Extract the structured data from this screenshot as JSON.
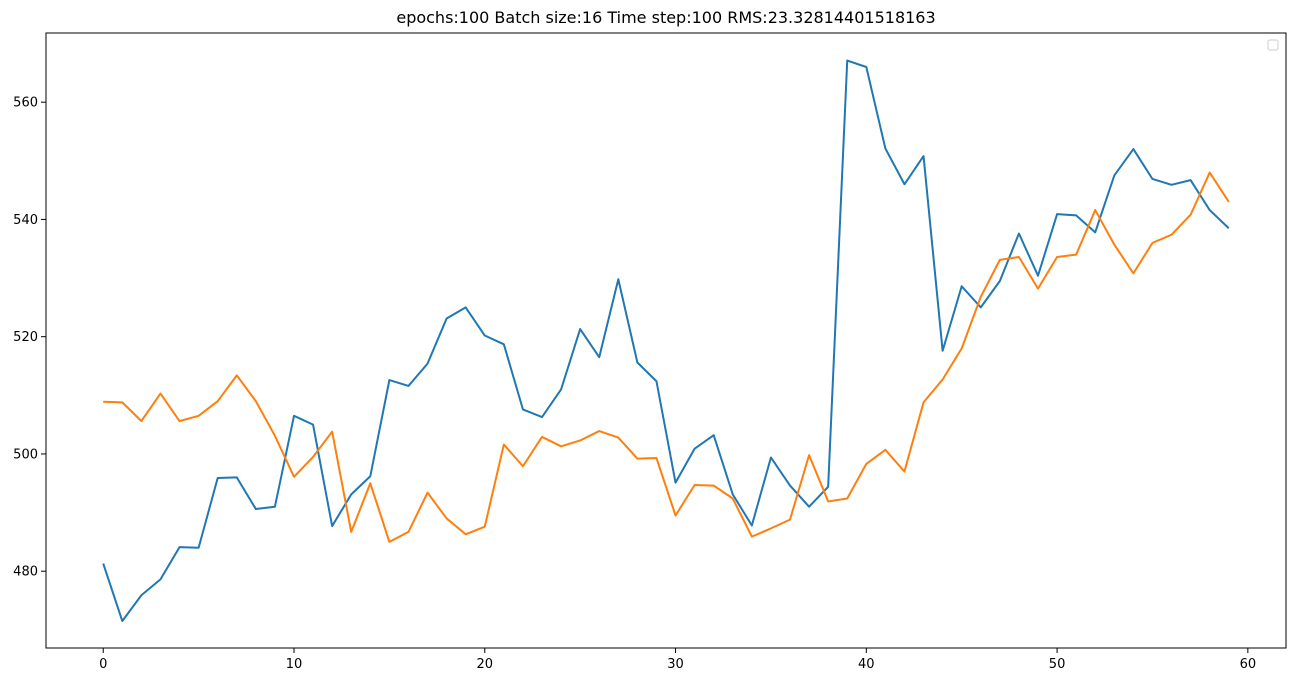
{
  "chart_data": {
    "type": "line",
    "title": "epochs:100   Batch size:16    Time step:100     RMS:23.32814401518163",
    "xlabel": "",
    "ylabel": "",
    "xlim": [
      -3,
      62
    ],
    "ylim": [
      466.9,
      571.8
    ],
    "x_ticks": [
      0,
      10,
      20,
      30,
      40,
      50,
      60
    ],
    "y_ticks": [
      480,
      500,
      520,
      540,
      560
    ],
    "grid": false,
    "legend": {
      "placement": "top-right",
      "entries": []
    },
    "x": [
      0,
      1,
      2,
      3,
      4,
      5,
      6,
      7,
      8,
      9,
      10,
      11,
      12,
      13,
      14,
      15,
      16,
      17,
      18,
      19,
      20,
      21,
      22,
      23,
      24,
      25,
      26,
      27,
      28,
      29,
      30,
      31,
      32,
      33,
      34,
      35,
      36,
      37,
      38,
      39,
      40,
      41,
      42,
      43,
      44,
      45,
      46,
      47,
      48,
      49,
      50,
      51,
      52,
      53,
      54,
      55,
      56,
      57,
      58,
      59
    ],
    "series": [
      {
        "color": "#1f77b4",
        "values": [
          481.3,
          471.5,
          475.9,
          478.6,
          484.1,
          484.0,
          495.9,
          496.0,
          490.6,
          491.0,
          506.5,
          505.0,
          487.7,
          493.1,
          496.2,
          512.6,
          511.6,
          515.4,
          523.1,
          525.0,
          520.2,
          518.7,
          507.6,
          506.3,
          511.0,
          521.3,
          516.5,
          529.8,
          515.6,
          512.4,
          495.1,
          500.9,
          503.2,
          493.1,
          487.8,
          499.4,
          494.6,
          491.0,
          494.4,
          567.1,
          566.0,
          552.1,
          546.0,
          550.8,
          517.6,
          528.6,
          525.0,
          529.5,
          537.6,
          530.4,
          540.9,
          540.7,
          537.8,
          547.5,
          552.0,
          546.9,
          545.9,
          546.7,
          541.6,
          538.5
        ]
      },
      {
        "color": "#ff7f0e",
        "values": [
          508.9,
          508.8,
          505.6,
          510.3,
          505.6,
          506.5,
          509.0,
          513.4,
          509.0,
          503.1,
          496.1,
          499.5,
          503.8,
          486.7,
          495.0,
          485.0,
          486.7,
          493.4,
          489.0,
          486.3,
          487.6,
          501.6,
          497.9,
          502.9,
          501.3,
          502.3,
          503.9,
          502.8,
          499.2,
          499.3,
          489.5,
          494.7,
          494.6,
          492.4,
          485.9,
          487.3,
          488.8,
          499.8,
          491.9,
          492.4,
          498.3,
          500.7,
          497.0,
          508.8,
          512.7,
          518.0,
          526.8,
          533.1,
          533.6,
          528.2,
          533.6,
          534.0,
          541.6,
          535.7,
          530.8,
          536.0,
          537.4,
          540.8,
          548.0,
          543.0
        ]
      }
    ]
  }
}
